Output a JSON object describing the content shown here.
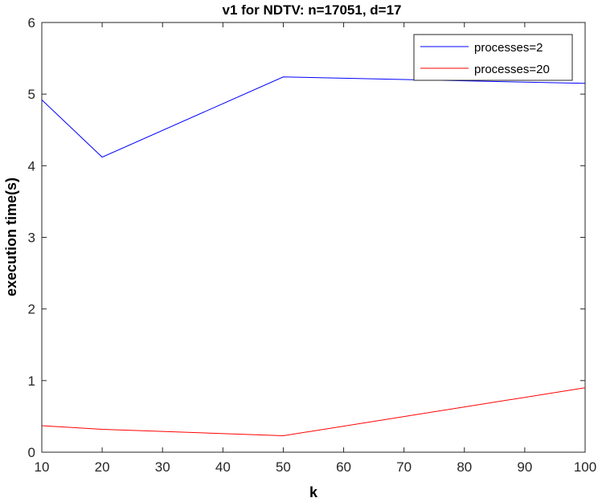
{
  "chart_data": {
    "type": "line",
    "title": "v1 for NDTV: n=17051, d=17",
    "xlabel": "k",
    "ylabel": "execution time(s)",
    "xlim": [
      10,
      100
    ],
    "ylim": [
      0,
      6
    ],
    "xticks": [
      10,
      20,
      30,
      40,
      50,
      60,
      70,
      80,
      90,
      100
    ],
    "yticks": [
      0,
      1,
      2,
      3,
      4,
      5,
      6
    ],
    "grid": false,
    "legend_position": "top-right",
    "series": [
      {
        "name": "processes=2",
        "color": "#0000ff",
        "x": [
          10,
          20,
          50,
          100
        ],
        "y": [
          4.92,
          4.12,
          5.24,
          5.15
        ]
      },
      {
        "name": "processes=20",
        "color": "#ff0000",
        "x": [
          10,
          20,
          50,
          100
        ],
        "y": [
          0.37,
          0.32,
          0.23,
          0.9
        ]
      }
    ]
  }
}
